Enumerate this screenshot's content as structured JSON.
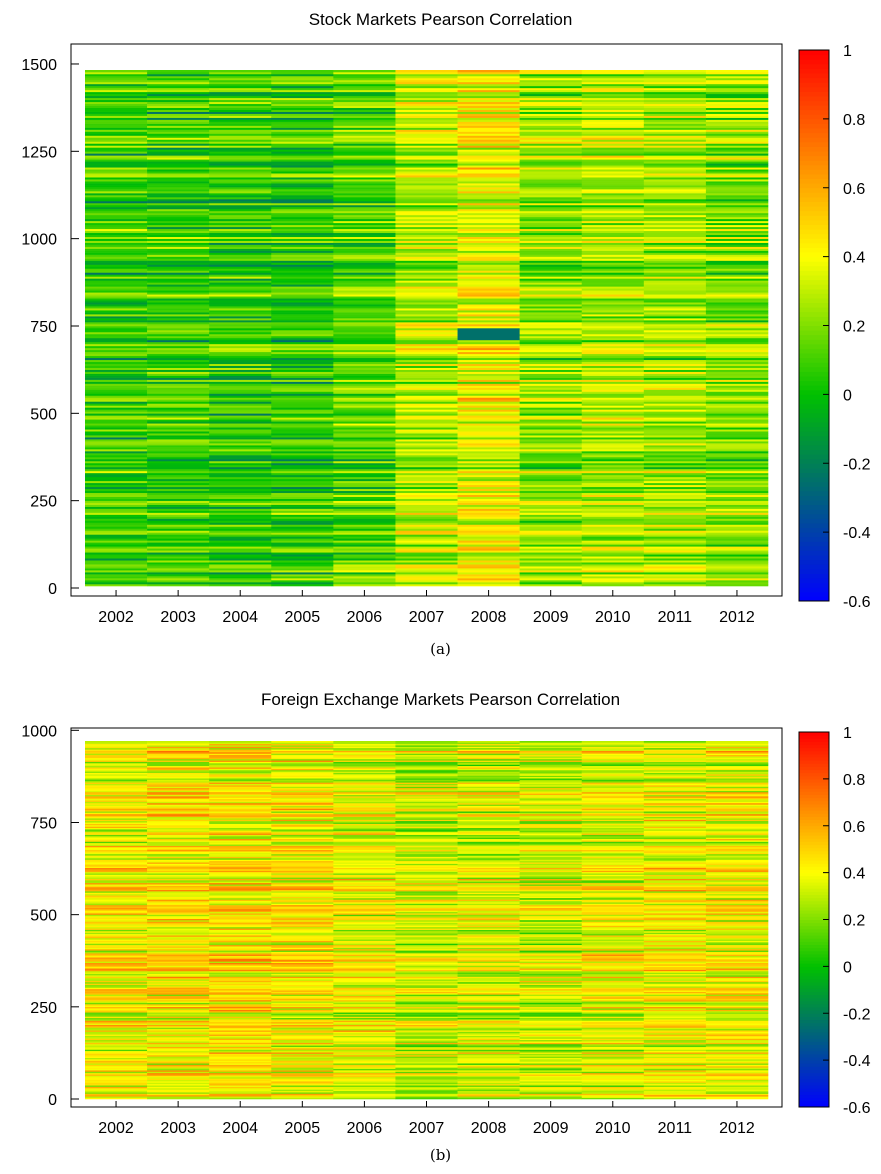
{
  "chart_data": [
    {
      "type": "heatmap",
      "title": "Stock Markets Pearson Correlation",
      "caption": "(a)",
      "categories": [
        "2002",
        "2003",
        "2004",
        "2005",
        "2006",
        "2007",
        "2008",
        "2009",
        "2010",
        "2011",
        "2012"
      ],
      "ylim": [
        0,
        1540
      ],
      "yticks": [
        "0",
        "250",
        "500",
        "750",
        "1000",
        "1250",
        "1500"
      ],
      "ytick_values": [
        0,
        250,
        500,
        750,
        1000,
        1250,
        1500
      ],
      "colorbar": {
        "min": -0.6,
        "max": 1,
        "ticks": [
          "1",
          "0.8",
          "0.6",
          "0.4",
          "0.2",
          "0",
          "-0.2",
          "-0.4",
          "-0.6"
        ],
        "tick_values": [
          1,
          0.8,
          0.6,
          0.4,
          0.2,
          0,
          -0.2,
          -0.4,
          -0.6
        ],
        "colors": [
          "#0000ff",
          "#00c000",
          "#ffff00",
          "#ff0000"
        ],
        "color_stops": [
          -0.6,
          0.0,
          0.4,
          1.0
        ]
      },
      "column_mean_correlation": [
        0.08,
        0.07,
        0.06,
        0.06,
        0.12,
        0.28,
        0.38,
        0.22,
        0.25,
        0.24,
        0.2
      ],
      "highlighted_band": {
        "year": "2008",
        "y_range": [
          705,
          740
        ],
        "value": -0.25
      }
    },
    {
      "type": "heatmap",
      "title": "Foreign Exchange Markets Pearson Correlation",
      "caption": "(b)",
      "categories": [
        "2002",
        "2003",
        "2004",
        "2005",
        "2006",
        "2007",
        "2008",
        "2009",
        "2010",
        "2011",
        "2012"
      ],
      "ylim": [
        0,
        990
      ],
      "yticks": [
        "0",
        "250",
        "500",
        "750",
        "1000"
      ],
      "ytick_values": [
        0,
        250,
        500,
        750,
        1000
      ],
      "colorbar": {
        "min": -0.6,
        "max": 1,
        "ticks": [
          "1",
          "0.8",
          "0.6",
          "0.4",
          "0.2",
          "0",
          "-0.2",
          "-0.4",
          "-0.6"
        ],
        "tick_values": [
          1,
          0.8,
          0.6,
          0.4,
          0.2,
          0,
          -0.2,
          -0.4,
          -0.6
        ],
        "colors": [
          "#0000ff",
          "#00c000",
          "#ffff00",
          "#ff0000"
        ],
        "color_stops": [
          -0.6,
          0.0,
          0.4,
          1.0
        ]
      },
      "column_mean_correlation": [
        0.42,
        0.44,
        0.45,
        0.43,
        0.38,
        0.33,
        0.35,
        0.33,
        0.37,
        0.4,
        0.4
      ]
    }
  ]
}
